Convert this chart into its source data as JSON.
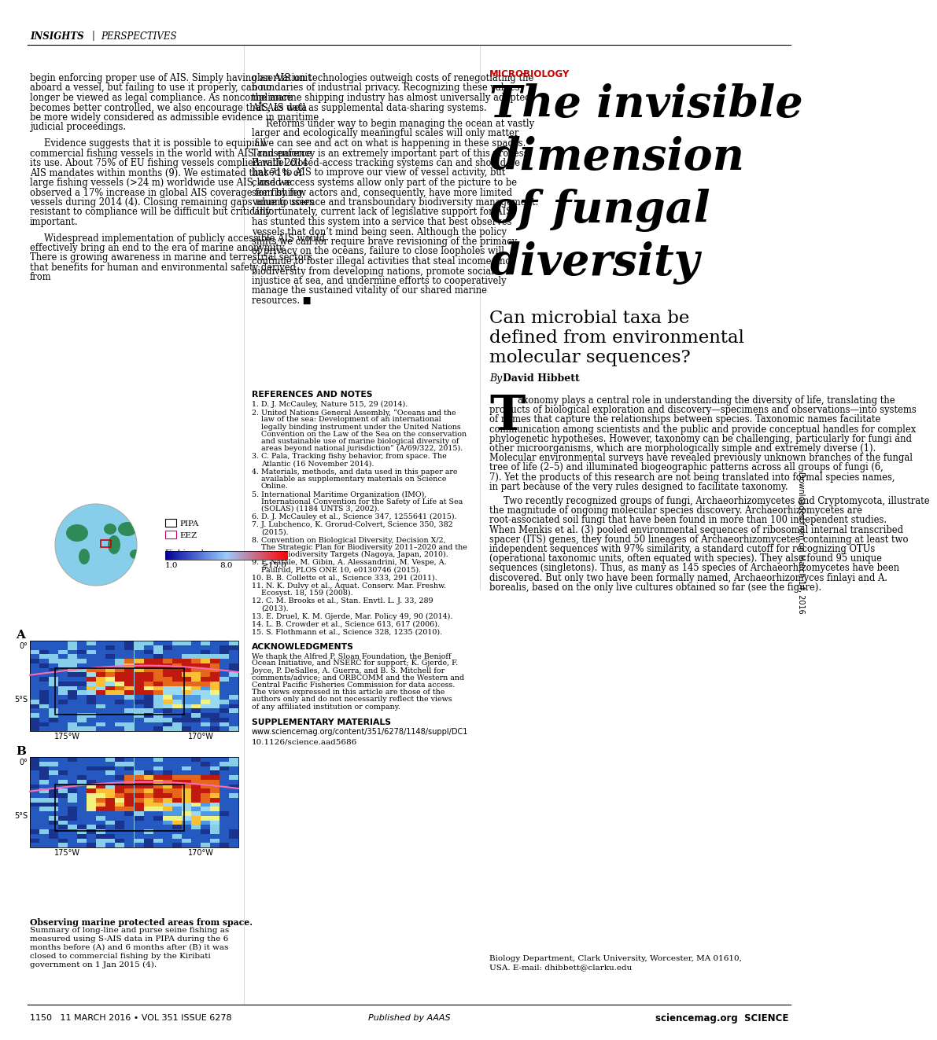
{
  "header_insights": "INSIGHTS",
  "header_sep": "|",
  "header_perspectives": "PERSPECTIVES",
  "microbiology_label": "MICROBIOLOGY",
  "big_title_lines": [
    "The invisible",
    "dimension",
    "of fungal",
    "diversity"
  ],
  "subtitle_lines": [
    "Can microbial taxa be",
    "defined from environmental",
    "molecular sequences?"
  ],
  "byline_italic": "By ",
  "byline_bold": "David Hibbett",
  "body_right_col": "axonomy plays a central role in understanding the diversity of life, translating the products of biological exploration and discovery—specimens and observations—into systems of names that capture the relationships between species. Taxonomic names facilitate communication among scientists and the public and provide conceptual handles for complex phylogenetic hypotheses. However, taxonomy can be challenging, particularly for fungi and other microorganisms, which are morphologically simple and extremely diverse (1). Molecular environmental surveys have revealed previously unknown branches of the fungal tree of life (2–5) and illuminated biogeographic patterns across all groups of fungi (6, 7). Yet the products of this research are not being translated into formal species names, in part because of the very rules designed to facilitate taxonomy.\n\nTwo recently recognized groups of fungi, Archaeorhizomycetes and Cryptomycota, illustrate the magnitude of ongoing molecular species discovery. Archaeorhizomycetes are root-associated soil fungi that have been found in more than 100 independent studies. When Menkis et al. (3) pooled environmental sequences of ribosomal internal transcribed spacer (ITS) genes, they found 50 lineages of Archaeorhizomycetes containing at least two independent sequences with 97% similarity, a standard cutoff for recognizing OTUs (operational taxonomic units, often equated with species). They also found 95 unique sequences (singletons). Thus, as many as 145 species of Archaeorhizomycetes have been discovered. But only two have been formally named, Archaeorhizomyces finlayi and A. borealis, based on the only live cultures obtained so far (see the figure).",
  "left_col_para1": "begin enforcing proper use of AIS. Simply having an AIS unit aboard a vessel, but failing to use it properly, can no longer be viewed as legal compliance. As noncompliance becomes better controlled, we also encourage that AIS data be more widely considered as admissible evidence in maritime judicial proceedings.",
  "left_col_para2": "Evidence suggests that it is possible to equip all commercial fishing vessels in the world with AIS and enforce its use. About 75% of EU fishing vessels complied with 2014 AIS mandates within months (9). We estimated that 71% of large fishing vessels (>24 m) worldwide use AIS, and we observed a 17% increase in global AIS coverage for fishing vessels during 2014 (4). Closing remaining gaps among users resistant to compliance will be difficult but critically important.",
  "left_col_para3": "Widespread implementation of publicly accessible AIS would effectively bring an end to the era of marine anonymity. There is growing awareness in marine and terrestrial sectors that benefits for human and environmental safety derived from",
  "mid_col_para1": "observation technologies outweigh costs of renegotiating the boundaries of industrial privacy. Recognizing these values, the marine shipping industry has almost universally adopted AIS, as well as supplemental data-sharing systems.",
  "mid_col_para2": "Reforms under way to begin managing the ocean at vastly larger and ecologically meaningful scales will only matter if we can see and act on what is happening in these spaces. Transparency is an extremely important part of this process. Parallel closed-access tracking systems can and should be linked to AIS to improve our view of vessel activity, but closed-access systems allow only part of the picture to be seen by few actors and, consequently, have more limited value to science and transboundary biodiversity management. Unfortunately, current lack of legislative support for AIS has stunted this system into a service that best observes vessels that don’t mind being seen. Although the policy shifts we call for require brave revisioning of the primacy of privacy on the oceans, failure to close loopholes will continue to foster illegal activities that steal income and biodiversity from developing nations, promote social injustice at sea, and undermine efforts to cooperatively manage the sustained vitality of our shared marine resources.",
  "end_mark": "■",
  "ref_header": "REFERENCES AND NOTES",
  "references": [
    "1.  D. J. McCauley, Nature 515, 29 (2014).",
    "2.  United Nations General Assembly, “Oceans and the law of the sea: Development of an international legally binding instrument under the United Nations Convention on the Law of the Sea on the conservation and sustainable use of marine biological diversity of areas beyond national jurisdiction” (A/69/322, 2015).",
    "3.  C. Pala, Tracking fishy behavior, from space. The Atlantic (16 November 2014).",
    "4.  Materials, methods, and data used in this paper are available as supplementary materials on Science Online.",
    "5.  International Maritime Organization (IMO), International Convention for the Safety of Life at Sea (SOLAS) (1184 UNTS 3, 2002).",
    "6.  D. J. McCauley et al., Science 347, 1255641 (2015).",
    "7.  J. Lubchenco, K. Grorud-Colvert, Science 350, 382 (2015).",
    "8.  Convention on Biological Diversity, Decision X/2, The Strategic Plan for Biodiversity 2011–2020 and the Aichi Biodiversity Targets (Nagoya, Japan, 2010).",
    "9.  F. Natale, M. Gibin, A. Alessandrini, M. Vespe, A. Paulrud, PLOS ONE 10, e0130746 (2015).",
    "10.  B. B. Collette et al., Science 333, 291 (2011).",
    "11.  N. K. Dulvy et al., Aquat. Conserv. Mar. Freshw. Ecosyst. 18, 159 (2008).",
    "12.  C. M. Brooks et al., Stan. Envtl. L. J. 33, 289 (2013).",
    "13.  E. Druel, K. M. Gjerde, Mar. Policy 49, 90 (2014).",
    "14.  L. B. Crowder et al., Science 613, 617 (2006).",
    "15.  S. Flothmann et al., Science 328, 1235 (2010)."
  ],
  "ack_header": "ACKNOWLEDGMENTS",
  "ack_text": "We thank the Alfred P. Sloan Foundation, the Benioff Ocean Initiative, and NSERC for support; K. Gjerde, F. Joyce, P. DeSalles, A. Guerra, and B. S. Mitchell for comments/advice; and ORBCOMM and the Western and Central Pacific Fisheries Commission for data access. The views expressed in this article are those of the authors only and do not necessarily reflect the views of any affiliated institution or company.",
  "supp_header": "SUPPLEMENTARY MATERIALS",
  "supp_url": "www.sciencemag.org/content/351/6278/1148/suppl/DC1",
  "doi": "10.1126/science.aad5686",
  "footer_left": "1150   11 MARCH 2016 • VOL 351 ISSUE 6278",
  "footer_right": "sciencemag.org  SCIENCE",
  "footer_center": "Published by AAAS",
  "sidebar_text": "Downloaded from on March 14, 2016",
  "bio_line1": "Biology Department, Clark University, Worcester, MA 01610,",
  "bio_line2": "USA. E-mail: dhibbett@clarku.edu",
  "caption_bold": "Observing marine protected areas from space.",
  "caption_rest": "Summary of long-line and purse seine fishing as measured using S-AIS data in PIPA during the 6 months before (A) and 6 months after (B) it was closed to commercial fishing by the Kiribati government on 1 Jan 2015 (4).",
  "colors": {
    "red": "#CC0000",
    "black": "#000000",
    "white": "#FFFFFF",
    "light_gray": "#CCCCCC",
    "dark_gray": "#444444",
    "mid_gray": "#888888",
    "text_gray": "#222222",
    "ocean_blue": "#87CEEB",
    "land_green": "#2E8B57",
    "pink": "#FF69B4"
  }
}
